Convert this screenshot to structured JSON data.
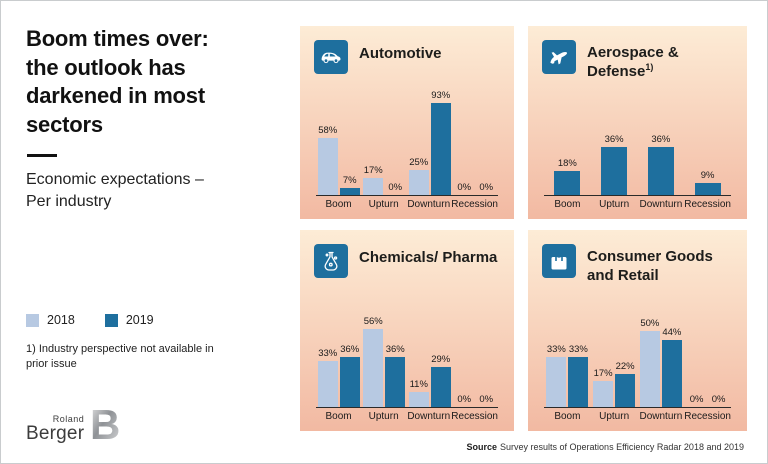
{
  "header": {
    "title": "Boom times over:\nthe outlook has\ndarkened in most\nsectors",
    "subtitle": "Economic expectations –\nPer industry"
  },
  "legend": {
    "items": [
      {
        "label": "2018",
        "color": "#b7c9e2"
      },
      {
        "label": "2019",
        "color": "#1e6f9e"
      }
    ]
  },
  "footnote": "1) Industry perspective not available in\nprior issue",
  "logo": {
    "top": "Roland",
    "bottom": "Berger",
    "mark": "B"
  },
  "source": {
    "label": "Source",
    "text": "Survey results of Operations Efficiency Radar 2018 and 2019"
  },
  "colors": {
    "accent": "#1e6f9e",
    "series_2018": "#b7c9e2",
    "series_2019": "#1e6f9e",
    "panel_top": "#fdecd6",
    "panel_bottom": "#f2b9a2"
  },
  "chart_data": [
    {
      "type": "bar",
      "title": "Automotive",
      "sup": "",
      "icon": "car-icon",
      "categories": [
        "Boom",
        "Upturn",
        "Downturn",
        "Recession"
      ],
      "ymax": 96,
      "series": [
        {
          "name": "2018",
          "color": "#b7c9e2",
          "values": [
            58,
            17,
            25,
            0
          ]
        },
        {
          "name": "2019",
          "color": "#1e6f9e",
          "values": [
            7,
            0,
            93,
            0
          ]
        }
      ]
    },
    {
      "type": "bar",
      "title": "Aerospace & Defense",
      "sup": "1)",
      "icon": "plane-icon",
      "categories": [
        "Boom",
        "Upturn",
        "Downturn",
        "Recession"
      ],
      "ymax": 71,
      "series": [
        {
          "name": "2019",
          "color": "#1e6f9e",
          "values": [
            18,
            36,
            36,
            9
          ]
        }
      ]
    },
    {
      "type": "bar",
      "title": "Chemicals/ Pharma",
      "sup": "",
      "icon": "flask-icon",
      "categories": [
        "Boom",
        "Upturn",
        "Downturn",
        "Recession"
      ],
      "ymax": 72,
      "series": [
        {
          "name": "2018",
          "color": "#b7c9e2",
          "values": [
            33,
            56,
            11,
            0
          ]
        },
        {
          "name": "2019",
          "color": "#1e6f9e",
          "values": [
            36,
            36,
            29,
            0
          ]
        }
      ]
    },
    {
      "type": "bar",
      "title": "Consumer Goods and Retail",
      "sup": "",
      "icon": "shopping-bag-icon",
      "categories": [
        "Boom",
        "Upturn",
        "Downturn",
        "Recession"
      ],
      "ymax": 66,
      "series": [
        {
          "name": "2018",
          "color": "#b7c9e2",
          "values": [
            33,
            17,
            50,
            0
          ]
        },
        {
          "name": "2019",
          "color": "#1e6f9e",
          "values": [
            33,
            22,
            44,
            0
          ]
        }
      ]
    }
  ]
}
